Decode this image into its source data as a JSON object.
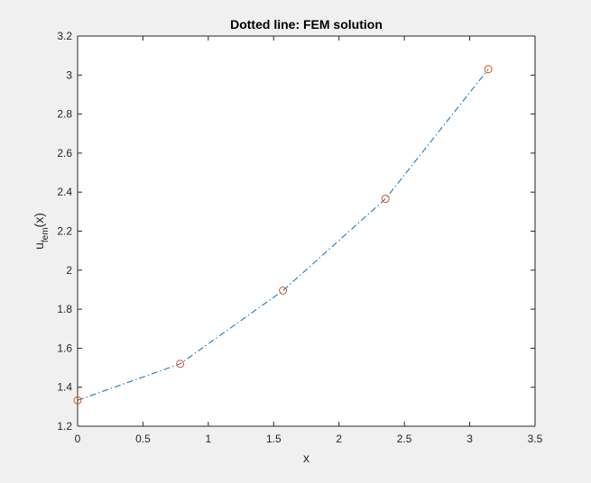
{
  "chart_data": {
    "type": "line",
    "title": "Dotted line: FEM solution",
    "xlabel": "x",
    "ylabel_main": "u",
    "ylabel_sub": "fem",
    "ylabel_tail": "(x)",
    "xlim": [
      0,
      3.5
    ],
    "ylim": [
      1.2,
      3.2
    ],
    "xticks": [
      0,
      0.5,
      1,
      1.5,
      2,
      2.5,
      3,
      3.5
    ],
    "xtick_labels": [
      "0",
      "0.5",
      "1",
      "1.5",
      "2",
      "2.5",
      "3",
      "3.5"
    ],
    "yticks": [
      1.2,
      1.4,
      1.6,
      1.8,
      2,
      2.2,
      2.4,
      2.6,
      2.8,
      3,
      3.2
    ],
    "ytick_labels": [
      "1.2",
      "1.4",
      "1.6",
      "1.8",
      "2",
      "2.2",
      "2.4",
      "2.6",
      "2.8",
      "3",
      "3.2"
    ],
    "grid": false,
    "series": [
      {
        "x": [
          0,
          0.785,
          1.571,
          2.356,
          3.142
        ],
        "values": [
          1.333,
          1.52,
          1.895,
          2.366,
          3.03
        ],
        "line_color": "#0072bd",
        "line_style": "dash-dot",
        "marker": "circle",
        "marker_color": "#d95319"
      }
    ]
  }
}
